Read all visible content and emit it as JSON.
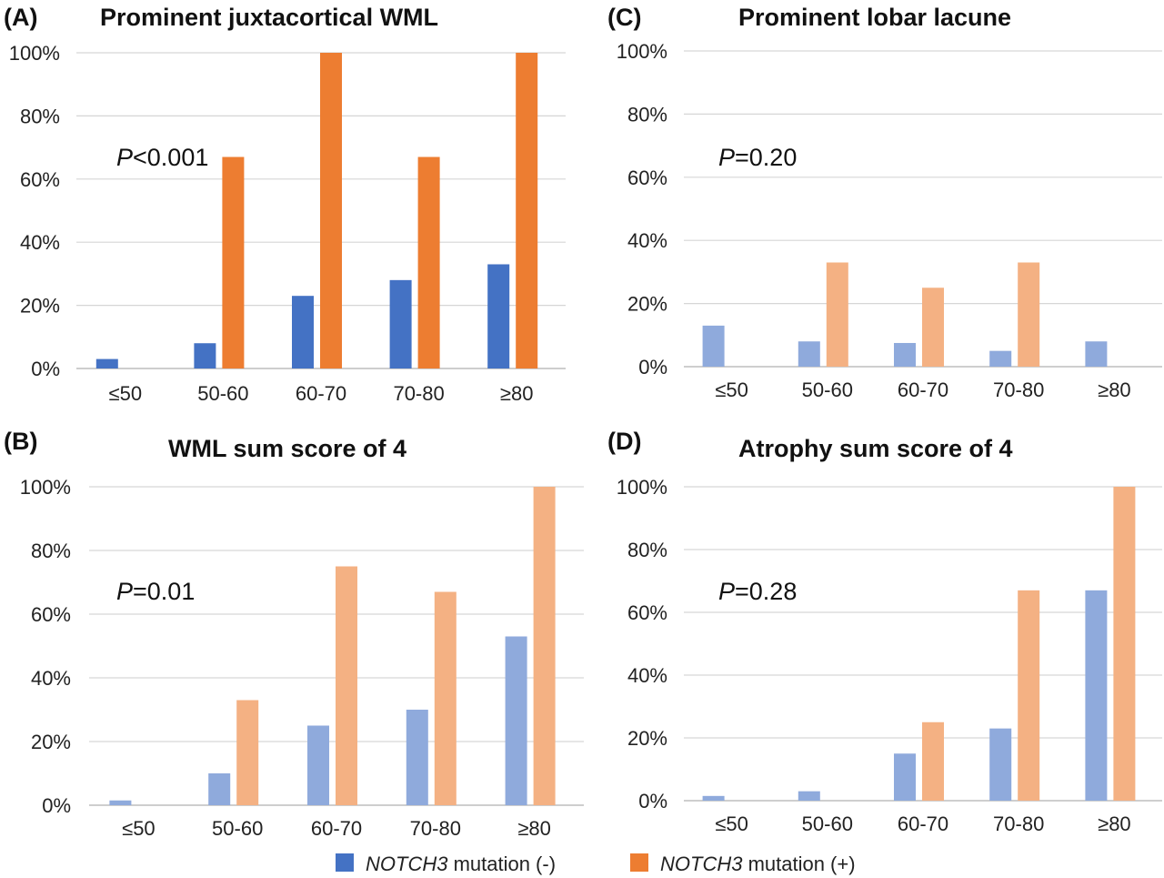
{
  "legend": {
    "negative": {
      "label_italic": "NOTCH3",
      "label_rest": " mutation (-)",
      "color": "#4472C4"
    },
    "positive": {
      "label_italic": "NOTCH3",
      "label_rest": " mutation (+)",
      "color": "#ED7D31"
    }
  },
  "chart_data": [
    {
      "type": "bar",
      "panel": "(A)",
      "title": "Prominent juxtacortical WML",
      "p_label": "P",
      "p_rest": "<0.001",
      "categories": [
        "≤50",
        "50-60",
        "60-70",
        "70-80",
        "≥80"
      ],
      "ylim": [
        0,
        100
      ],
      "yticks": [
        "0%",
        "20%",
        "40%",
        "60%",
        "80%",
        "100%"
      ],
      "colors": [
        "#4472C4",
        "#ED7D31"
      ],
      "series": [
        {
          "values": [
            3,
            8,
            23,
            28,
            33
          ]
        },
        {
          "values": [
            0,
            67,
            100,
            67,
            100
          ]
        }
      ]
    },
    {
      "type": "bar",
      "panel": "(C)",
      "title": "Prominent lobar lacune",
      "p_label": "P",
      "p_rest": "=0.20",
      "categories": [
        "≤50",
        "50-60",
        "60-70",
        "70-80",
        "≥80"
      ],
      "ylim": [
        0,
        100
      ],
      "yticks": [
        "0%",
        "20%",
        "40%",
        "60%",
        "80%",
        "100%"
      ],
      "colors": [
        "#8FAADC",
        "#F4B183"
      ],
      "series": [
        {
          "values": [
            13,
            8,
            7.5,
            5,
            8
          ]
        },
        {
          "values": [
            0,
            33,
            25,
            33,
            0
          ]
        }
      ]
    },
    {
      "type": "bar",
      "panel": "(B)",
      "title": "WML sum score of 4",
      "p_label": "P",
      "p_rest": "=0.01",
      "categories": [
        "≤50",
        "50-60",
        "60-70",
        "70-80",
        "≥80"
      ],
      "ylim": [
        0,
        100
      ],
      "yticks": [
        "0%",
        "20%",
        "40%",
        "60%",
        "80%",
        "100%"
      ],
      "colors": [
        "#8FAADC",
        "#F4B183"
      ],
      "series": [
        {
          "values": [
            1.5,
            10,
            25,
            30,
            53
          ]
        },
        {
          "values": [
            0,
            33,
            75,
            67,
            100
          ]
        }
      ]
    },
    {
      "type": "bar",
      "panel": "(D)",
      "title": "Atrophy sum score of 4",
      "p_label": "P",
      "p_rest": "=0.28",
      "categories": [
        "≤50",
        "50-60",
        "60-70",
        "70-80",
        "≥80"
      ],
      "ylim": [
        0,
        100
      ],
      "yticks": [
        "0%",
        "20%",
        "40%",
        "60%",
        "80%",
        "100%"
      ],
      "colors": [
        "#8FAADC",
        "#F4B183"
      ],
      "series": [
        {
          "values": [
            1.5,
            3,
            15,
            23,
            67
          ]
        },
        {
          "values": [
            0,
            0,
            25,
            67,
            100
          ]
        }
      ]
    }
  ]
}
